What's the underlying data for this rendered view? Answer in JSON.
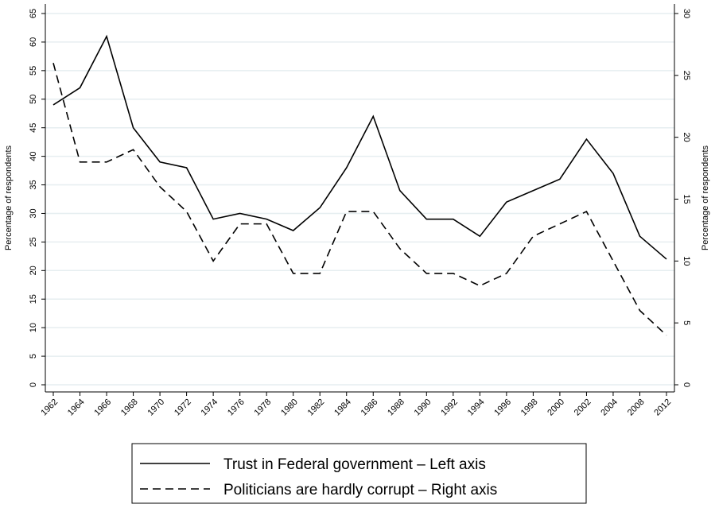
{
  "chart_data": {
    "type": "line",
    "categories": [
      "1962",
      "1964",
      "1966",
      "1968",
      "1970",
      "1972",
      "1974",
      "1976",
      "1978",
      "1980",
      "1982",
      "1984",
      "1986",
      "1988",
      "1990",
      "1992",
      "1994",
      "1996",
      "1998",
      "2000",
      "2002",
      "2004",
      "2008",
      "2012"
    ],
    "y_label": "Percentage of respondents",
    "y2_label": "Percentage of respondents",
    "ylim": [
      0,
      65
    ],
    "yticks": [
      0,
      5,
      10,
      15,
      20,
      25,
      30,
      35,
      40,
      45,
      50,
      55,
      60,
      65
    ],
    "y2lim": [
      0,
      30
    ],
    "y2ticks": [
      0,
      5,
      10,
      15,
      20,
      25,
      30
    ],
    "grid": true,
    "series": [
      {
        "name": "Trust in Federal government – Left axis",
        "color": "#000000",
        "dash": "solid",
        "values": [
          49,
          52,
          61,
          45,
          39,
          38,
          29,
          30,
          29,
          27,
          31,
          38,
          47,
          34,
          29,
          29,
          26,
          32,
          34,
          36,
          43,
          37,
          26,
          22
        ]
      },
      {
        "name": "Politicians are hardly corrupt – Right axis",
        "color": "#000000",
        "dash": "dashed",
        "axis": "y2",
        "values": [
          26,
          18,
          18,
          19,
          16,
          14,
          10,
          13,
          13,
          9,
          9,
          14,
          14,
          11,
          9,
          9,
          8,
          9,
          12,
          13,
          14,
          10,
          6,
          4
        ]
      }
    ]
  }
}
